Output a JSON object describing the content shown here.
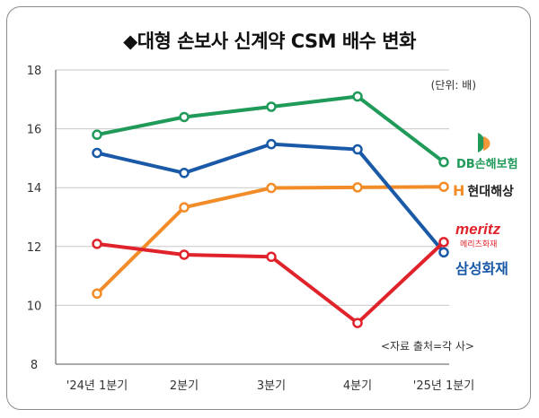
{
  "chart_data": {
    "type": "line",
    "title": "◆대형 손보사 신계약 CSM 배수 변화",
    "unit_note": "(단위: 배)",
    "source_note": "<자료 출처=각 사>",
    "categories": [
      "'24년 1분기",
      "2분기",
      "3분기",
      "4분기",
      "'25년 1분기"
    ],
    "ylim": [
      8,
      18
    ],
    "yticks": [
      8,
      10,
      12,
      14,
      16,
      18
    ],
    "grid": true,
    "legend_placement": "right",
    "series": [
      {
        "name": "DB손해보험",
        "color": "#1f9a58",
        "values": [
          15.8,
          16.4,
          16.75,
          17.1,
          14.87
        ]
      },
      {
        "name": "현대해상",
        "color": "#f28c28",
        "values": [
          10.4,
          13.33,
          13.99,
          14.01,
          14.03
        ]
      },
      {
        "name": "삼성화재",
        "color": "#1959a8",
        "values": [
          15.18,
          14.5,
          15.48,
          15.3,
          11.8
        ]
      },
      {
        "name": "meritz",
        "color": "#e0232b",
        "values": [
          12.09,
          11.72,
          11.65,
          9.4,
          12.15
        ]
      }
    ]
  },
  "legend": {
    "db": "DB손해보험",
    "hyundai": "현대해상",
    "hyundai_icon": "H",
    "meritz": "meritz",
    "meritz_sub": "메리츠화재",
    "samsung": "삼성화재"
  }
}
